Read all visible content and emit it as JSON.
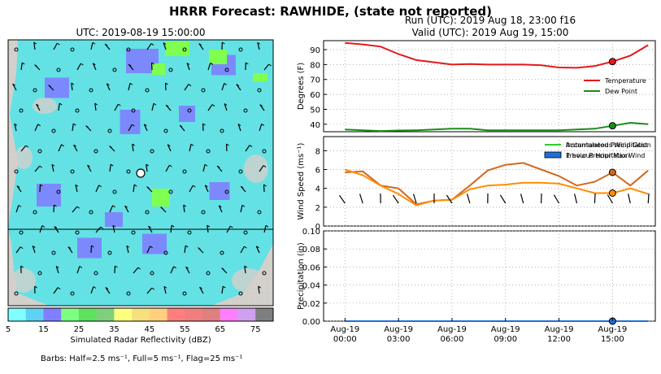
{
  "title": "HRRR Forecast: RAWHIDE, (state not reported)",
  "run_info": {
    "run": "Run (UTC): 2019 Aug 18, 23:00 f16",
    "valid": "Valid (UTC): 2019 Aug 19, 15:00"
  },
  "map": {
    "title": "UTC: 2019-08-19 15:00:00",
    "colorbar": {
      "label": "Simulated Radar Reflectivity (dBZ)",
      "ticks": [
        "5",
        "15",
        "25",
        "35",
        "45",
        "55",
        "65",
        "75"
      ],
      "colors": [
        "#7fffff",
        "#5fd1f5",
        "#7f7fff",
        "#7fff7f",
        "#5fe05f",
        "#7fcf7f",
        "#ffff7f",
        "#f5e07f",
        "#ffcf7f",
        "#ff7f7f",
        "#ef7f7f",
        "#df7f7f",
        "#ff7fff",
        "#cfa0ef",
        "#7f7f7f"
      ]
    },
    "barbs_note": "Barbs: Half=2.5 ms⁻¹, Full=5 ms⁻¹, Flag=25 ms⁻¹"
  },
  "chart_data": [
    {
      "type": "line",
      "ylabel": "Degrees (F)",
      "ylim": [
        35,
        96
      ],
      "yticks": [
        "40",
        "50",
        "60",
        "70",
        "80",
        "90"
      ],
      "x": [
        0,
        1,
        2,
        3,
        4,
        5,
        6,
        7,
        8,
        9,
        10,
        11,
        12,
        13,
        14,
        15,
        16,
        17
      ],
      "series": [
        {
          "name": "Temperature",
          "color": "#e31a1c",
          "values": [
            94.5,
            93.5,
            92,
            87,
            83,
            81.5,
            80,
            80.3,
            80,
            80,
            80,
            79.5,
            78,
            77.8,
            79,
            82,
            86,
            93
          ]
        },
        {
          "name": "Dew Point",
          "color": "#1a8c1a",
          "values": [
            36.5,
            36,
            35.5,
            35.8,
            36,
            36.5,
            37,
            37,
            36,
            36,
            36,
            36,
            36,
            36.5,
            37,
            39,
            41,
            40
          ]
        }
      ],
      "highlight_index": 15,
      "legend": "center-right",
      "grid": true
    },
    {
      "type": "line",
      "ylabel": "Wind Speed (ms⁻¹)",
      "ylim": [
        0,
        9.5
      ],
      "yticks": [
        "0",
        "2",
        "4",
        "6",
        "8"
      ],
      "x": [
        0,
        1,
        2,
        3,
        4,
        5,
        6,
        7,
        8,
        9,
        10,
        11,
        12,
        13,
        14,
        15,
        16,
        17
      ],
      "series": [
        {
          "name": "Instantaneous Wind Gust",
          "color": "#d2691e",
          "values": [
            5.7,
            5.8,
            4.3,
            4,
            2.3,
            2.7,
            2.8,
            4.3,
            5.9,
            6.5,
            6.7,
            6,
            5.3,
            4.3,
            4.7,
            5.7,
            4.3,
            5.9
          ]
        },
        {
          "name": "Previous Hour Max Wind",
          "color": "#ff8c00",
          "values": [
            6,
            5.4,
            4.3,
            3.4,
            2.2,
            2.7,
            2.8,
            3.9,
            4.3,
            4.4,
            4.6,
            4.6,
            4.5,
            4,
            3.5,
            3.5,
            4,
            3.4
          ]
        }
      ],
      "highlight_index": 15,
      "legend": "top-right",
      "grid": true
    },
    {
      "type": "bar",
      "ylabel": "Precipitation (in)",
      "ylim": [
        0,
        0.1
      ],
      "yticks": [
        "0.00",
        "0.02",
        "0.04",
        "0.06",
        "0.08",
        "0.10"
      ],
      "x": [
        0,
        1,
        2,
        3,
        4,
        5,
        6,
        7,
        8,
        9,
        10,
        11,
        12,
        13,
        14,
        15,
        16,
        17
      ],
      "series": [
        {
          "name": "Accumulated Precipitation",
          "color": "#2ecc2e",
          "values": [
            0,
            0,
            0,
            0,
            0,
            0,
            0,
            0,
            0,
            0,
            0,
            0,
            0,
            0,
            0,
            0,
            0,
            0
          ]
        },
        {
          "name": "1 hour Precipitation",
          "color": "#1e6fd9",
          "values": [
            0,
            0,
            0,
            0,
            0,
            0,
            0,
            0,
            0,
            0,
            0,
            0,
            0,
            0,
            0,
            0,
            0,
            0
          ]
        }
      ],
      "highlight_index": 15,
      "legend": "top-right",
      "grid": true,
      "xtick_labels": [
        [
          "Aug-19",
          "00:00"
        ],
        [
          "Aug-19",
          "03:00"
        ],
        [
          "Aug-19",
          "06:00"
        ],
        [
          "Aug-19",
          "09:00"
        ],
        [
          "Aug-19",
          "12:00"
        ],
        [
          "Aug-19",
          "15:00"
        ]
      ]
    }
  ]
}
